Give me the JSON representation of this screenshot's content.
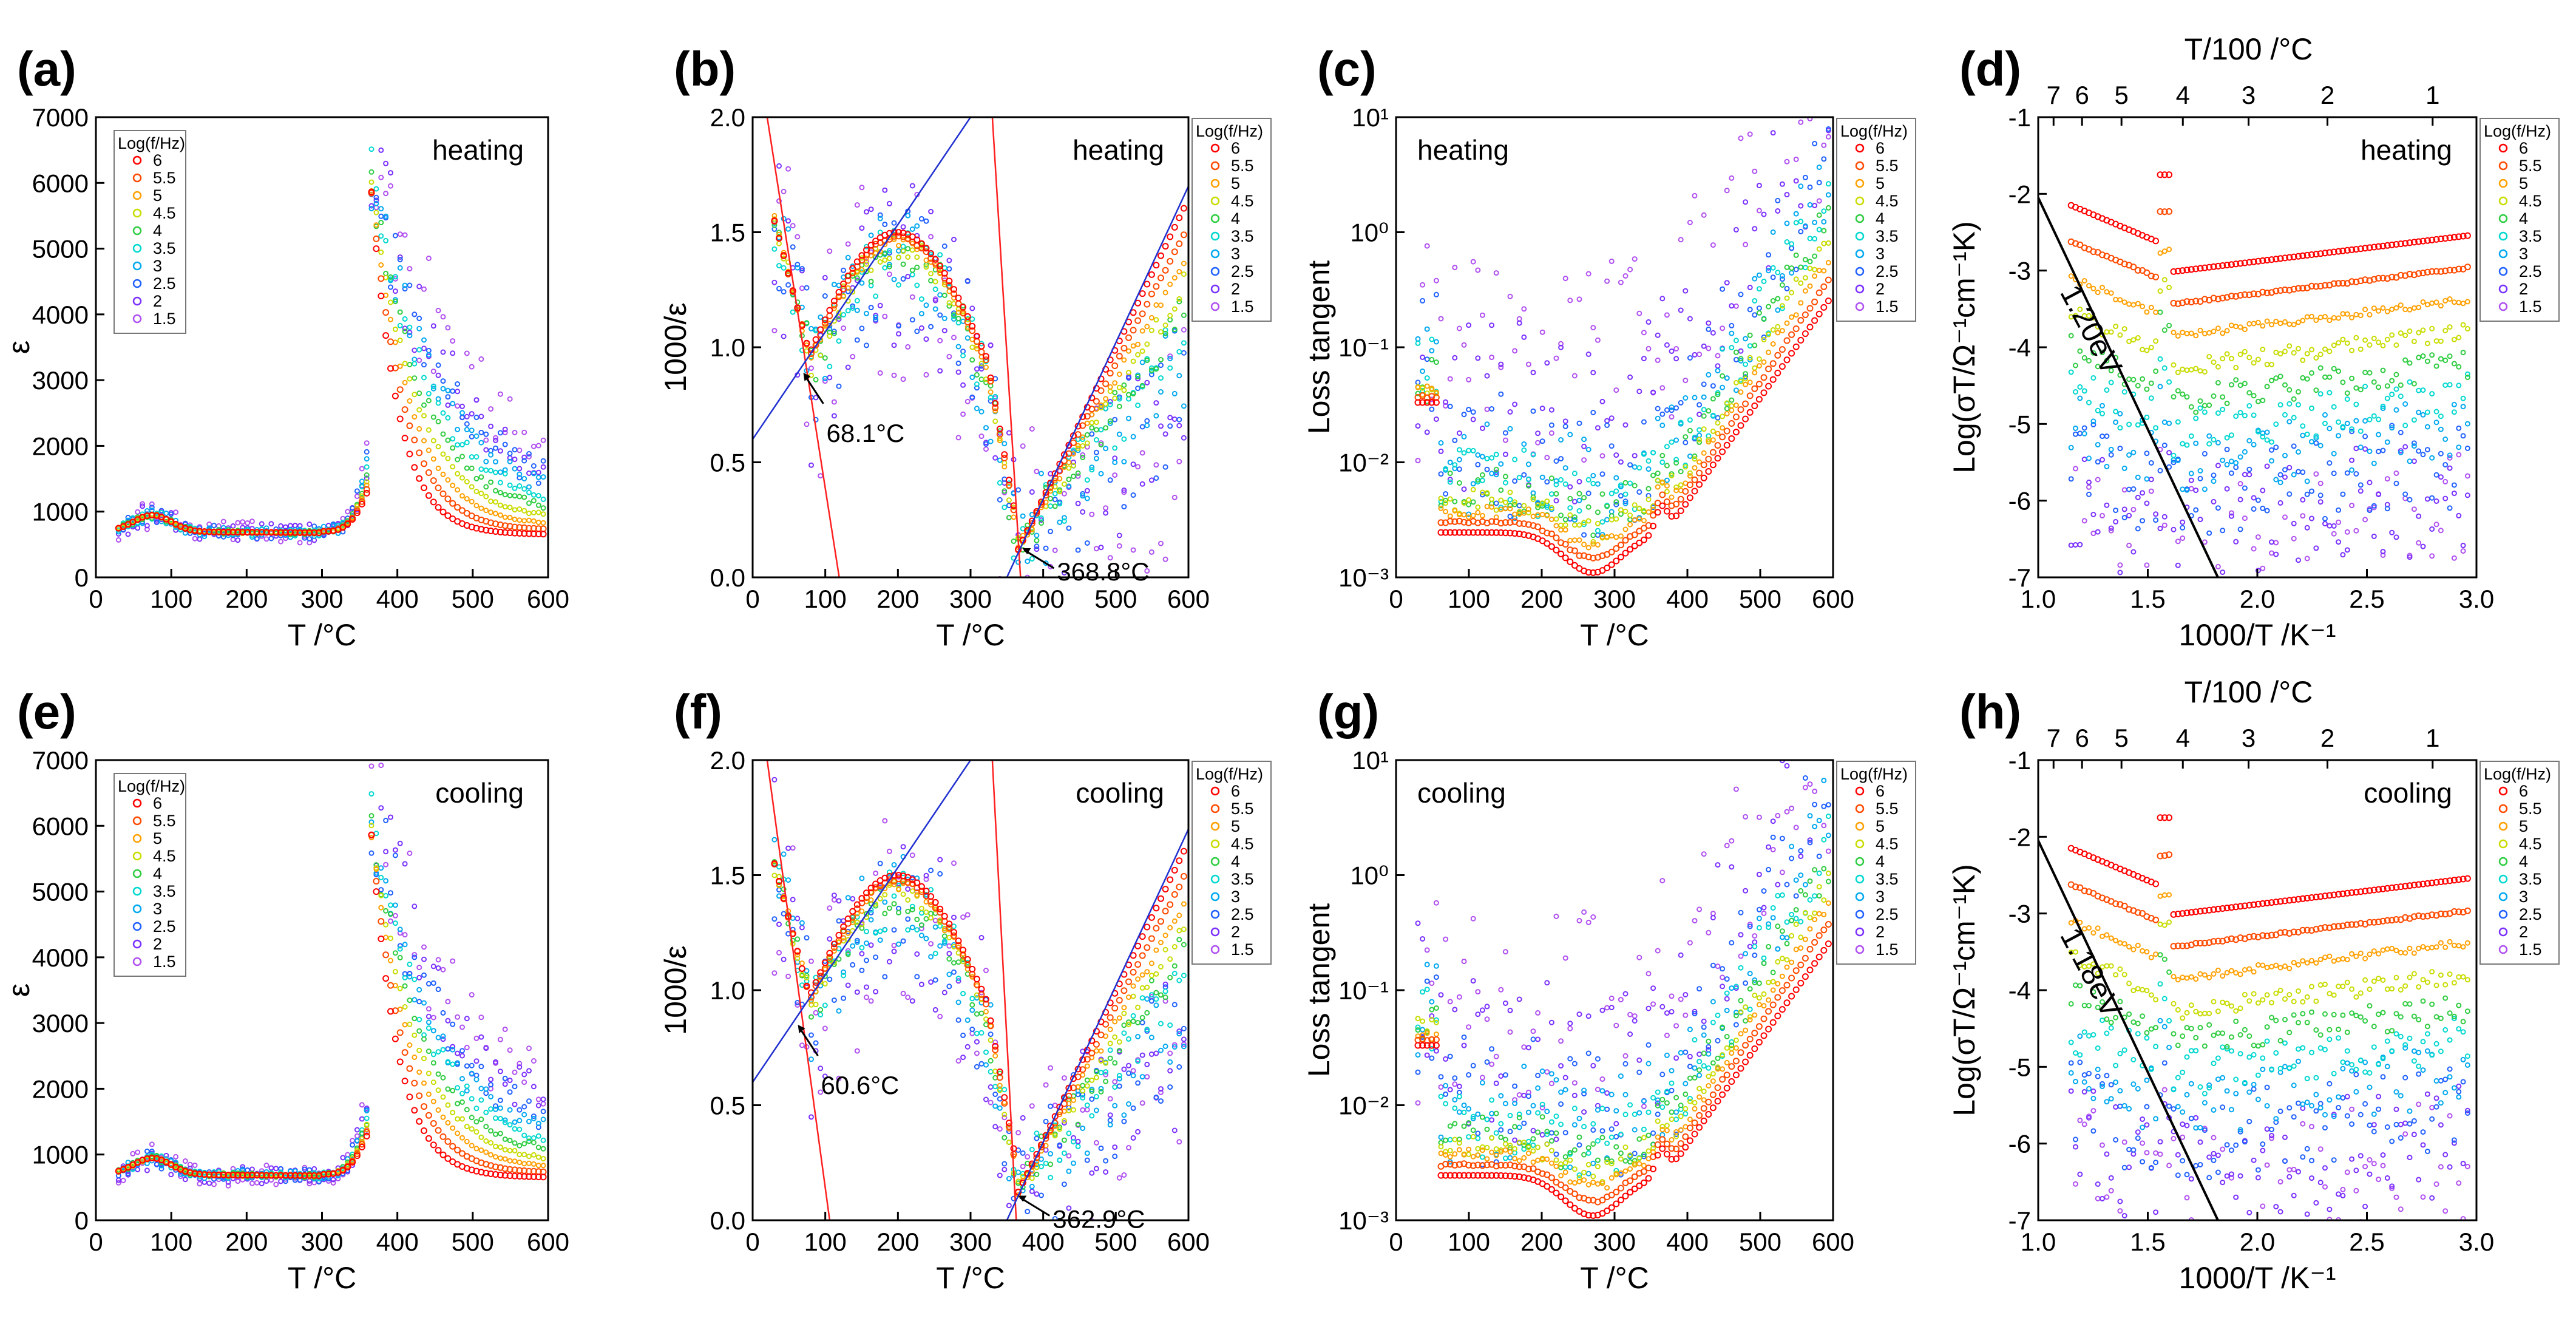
{
  "chart_data": [
    {
      "id": "a",
      "label": "(a)",
      "type": "scatter",
      "mode": "heating",
      "xlabel": "T /°C",
      "ylabel": "ε",
      "xlim": [
        0,
        600
      ],
      "ylim": [
        0,
        7000
      ],
      "xticks": [
        0,
        100,
        200,
        300,
        400,
        500,
        600
      ],
      "yticks": [
        0,
        1000,
        2000,
        3000,
        4000,
        5000,
        6000,
        7000
      ],
      "yticklabels": [
        "0",
        "1000",
        "2000",
        "3000",
        "4000",
        "5000",
        "6000",
        "7000"
      ],
      "legend_title": "Log(f/Hz)",
      "legend": [
        "6",
        "5.5",
        "5",
        "4.5",
        "4",
        "3.5",
        "3",
        "2.5",
        "2",
        "1.5"
      ],
      "annotations": []
    },
    {
      "id": "b",
      "label": "(b)",
      "type": "scatter",
      "mode": "heating",
      "xlabel": "T /°C",
      "ylabel": "1000/ε",
      "xlim": [
        0,
        600
      ],
      "ylim": [
        0,
        2
      ],
      "xticks": [
        0,
        100,
        200,
        300,
        400,
        500,
        600
      ],
      "yticks": [
        0,
        0.5,
        1,
        1.5,
        2
      ],
      "yticklabels": [
        "0.0",
        "0.5",
        "1.0",
        "1.5",
        "2.0"
      ],
      "legend_title": "Log(f/Hz)",
      "legend": [
        "6",
        "5.5",
        "5",
        "4.5",
        "4",
        "3.5",
        "3",
        "2.5",
        "2",
        "1.5"
      ],
      "annotations": [
        {
          "text": "68.1°C",
          "x": 68.1,
          "y": 0.9
        },
        {
          "text": "368.8°C",
          "x": 368.8,
          "y": 0.14
        }
      ]
    },
    {
      "id": "c",
      "label": "(c)",
      "type": "scatter",
      "mode": "heating",
      "xlabel": "T /°C",
      "ylabel": "Loss tangent",
      "xlim": [
        0,
        600
      ],
      "ylim": [
        -3,
        1
      ],
      "log": true,
      "xticks": [
        0,
        100,
        200,
        300,
        400,
        500,
        600
      ],
      "yticks": [
        -3,
        -2,
        -1,
        0,
        1
      ],
      "yticklabels": [
        "10⁻³",
        "10⁻²",
        "10⁻¹",
        "10⁰",
        "10¹"
      ],
      "legend_title": "Log(f/Hz)",
      "legend": [
        "6",
        "5.5",
        "5",
        "4.5",
        "4",
        "3.5",
        "3",
        "2.5",
        "2",
        "1.5"
      ],
      "annotations": []
    },
    {
      "id": "d",
      "label": "(d)",
      "type": "scatter",
      "mode": "heating",
      "xlabel": "1000/T /K⁻¹",
      "ylabel": "Log(σT/Ω⁻¹cm⁻¹K)",
      "top_label": "T/100 /°C",
      "top_ticks": [
        "7",
        "6",
        "5",
        "4",
        "3",
        "2",
        "1"
      ],
      "xlim": [
        1,
        3
      ],
      "ylim": [
        -7,
        -1
      ],
      "xticks": [
        1,
        1.5,
        2,
        2.5,
        3
      ],
      "xticklabels": [
        "1.0",
        "1.5",
        "2.0",
        "2.5",
        "3.0"
      ],
      "yticks": [
        -7,
        -6,
        -5,
        -4,
        -3,
        -2,
        -1
      ],
      "yticklabels": [
        "-7",
        "-6",
        "-5",
        "-4",
        "-3",
        "-2",
        "-1"
      ],
      "legend_title": "Log(f/Hz)",
      "legend": [
        "6",
        "5.5",
        "5",
        "4.5",
        "4",
        "3.5",
        "3",
        "2.5",
        "2",
        "1.5"
      ],
      "annotations": [
        {
          "text": "1.20eV"
        }
      ]
    },
    {
      "id": "e",
      "label": "(e)",
      "type": "scatter",
      "mode": "cooling",
      "xlabel": "T /°C",
      "ylabel": "ε",
      "xlim": [
        0,
        600
      ],
      "ylim": [
        0,
        7000
      ],
      "xticks": [
        0,
        100,
        200,
        300,
        400,
        500,
        600
      ],
      "yticks": [
        0,
        1000,
        2000,
        3000,
        4000,
        5000,
        6000,
        7000
      ],
      "yticklabels": [
        "0",
        "1000",
        "2000",
        "3000",
        "4000",
        "5000",
        "6000",
        "7000"
      ],
      "legend_title": "Log(f/Hz)",
      "legend": [
        "6",
        "5.5",
        "5",
        "4.5",
        "4",
        "3.5",
        "3",
        "2.5",
        "2",
        "1.5"
      ],
      "annotations": []
    },
    {
      "id": "f",
      "label": "(f)",
      "type": "scatter",
      "mode": "cooling",
      "xlabel": "T /°C",
      "ylabel": "1000/ε",
      "xlim": [
        0,
        600
      ],
      "ylim": [
        0,
        2
      ],
      "xticks": [
        0,
        100,
        200,
        300,
        400,
        500,
        600
      ],
      "yticks": [
        0,
        0.5,
        1,
        1.5,
        2
      ],
      "yticklabels": [
        "0.0",
        "0.5",
        "1.0",
        "1.5",
        "2.0"
      ],
      "legend_title": "Log(f/Hz)",
      "legend": [
        "6",
        "5.5",
        "5",
        "4.5",
        "4",
        "3.5",
        "3",
        "2.5",
        "2",
        "1.5"
      ],
      "annotations": [
        {
          "text": "60.6°C",
          "x": 60.6,
          "y": 0.86
        },
        {
          "text": "362.9°C",
          "x": 362.9,
          "y": 0.12
        }
      ]
    },
    {
      "id": "g",
      "label": "(g)",
      "type": "scatter",
      "mode": "cooling",
      "xlabel": "T /°C",
      "ylabel": "Loss tangent",
      "xlim": [
        0,
        600
      ],
      "ylim": [
        -3,
        1
      ],
      "log": true,
      "xticks": [
        0,
        100,
        200,
        300,
        400,
        500,
        600
      ],
      "yticks": [
        -3,
        -2,
        -1,
        0,
        1
      ],
      "yticklabels": [
        "10⁻³",
        "10⁻²",
        "10⁻¹",
        "10⁰",
        "10¹"
      ],
      "legend_title": "Log(f/Hz)",
      "legend": [
        "6",
        "5.5",
        "5",
        "4.5",
        "4",
        "3.5",
        "3",
        "2.5",
        "2",
        "1.5"
      ],
      "annotations": []
    },
    {
      "id": "h",
      "label": "(h)",
      "type": "scatter",
      "mode": "cooling",
      "xlabel": "1000/T /K⁻¹",
      "ylabel": "Log(σT/Ω⁻¹cm⁻¹K)",
      "top_label": "T/100 /°C",
      "top_ticks": [
        "7",
        "6",
        "5",
        "4",
        "3",
        "2",
        "1"
      ],
      "xlim": [
        1,
        3
      ],
      "ylim": [
        -7,
        -1
      ],
      "xticks": [
        1,
        1.5,
        2,
        2.5,
        3
      ],
      "xticklabels": [
        "1.0",
        "1.5",
        "2.0",
        "2.5",
        "3.0"
      ],
      "yticks": [
        -7,
        -6,
        -5,
        -4,
        -3,
        -2,
        -1
      ],
      "yticklabels": [
        "-7",
        "-6",
        "-5",
        "-4",
        "-3",
        "-2",
        "-1"
      ],
      "legend_title": "Log(f/Hz)",
      "legend": [
        "6",
        "5.5",
        "5",
        "4.5",
        "4",
        "3.5",
        "3",
        "2.5",
        "2",
        "1.5"
      ],
      "annotations": [
        {
          "text": "1.18eV"
        }
      ]
    }
  ],
  "series_colors": [
    "#ff0000",
    "#ff4a00",
    "#ffa000",
    "#c8dc00",
    "#2ecc40",
    "#00d8d0",
    "#00a8f0",
    "#2060ff",
    "#7a30ff",
    "#b050f0"
  ]
}
